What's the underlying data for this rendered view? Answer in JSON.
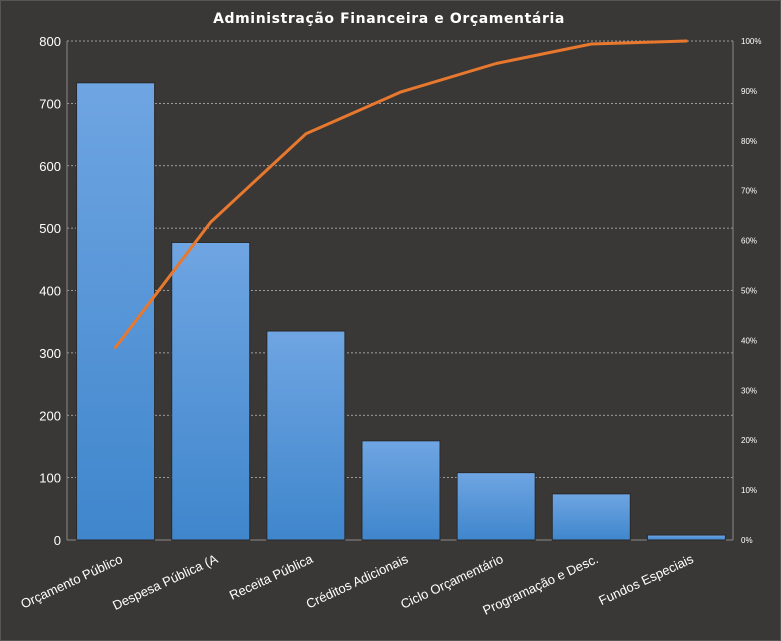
{
  "chart_data": {
    "type": "bar",
    "title": "Administração  Financeira  e Orçamentária",
    "categories": [
      "Orçamento Público",
      "Despesa Pública (A",
      "Receita Pública",
      "Créditos Adicionais",
      "Ciclo Orçamentário",
      "Programação e Desc.",
      "Fundos  Especiais"
    ],
    "series": [
      {
        "type": "bar",
        "values": [
          733,
          477,
          335,
          159,
          108,
          74,
          8
        ]
      },
      {
        "type": "line",
        "axis": "right",
        "values": [
          38.6,
          63.7,
          81.4,
          89.8,
          95.5,
          99.4,
          100
        ]
      }
    ],
    "ylim": [
      0,
      800
    ],
    "yticks": [
      "0",
      "100",
      "200",
      "300",
      "400",
      "500",
      "600",
      "700",
      "800"
    ],
    "y2lim": [
      0,
      100
    ],
    "y2ticks": [
      "0%",
      "10%",
      "20%",
      "30%",
      "40%",
      "50%",
      "60%",
      "70%",
      "80%",
      "90%",
      "100%"
    ],
    "grid": true,
    "legend": "none",
    "colors": {
      "background": "#3a3836",
      "bar_top": "#6fa5e2",
      "bar_bottom": "#3f86cc",
      "bar_border": "#2a2a2a",
      "line": "#e8782e",
      "text": "#ffffff"
    }
  }
}
